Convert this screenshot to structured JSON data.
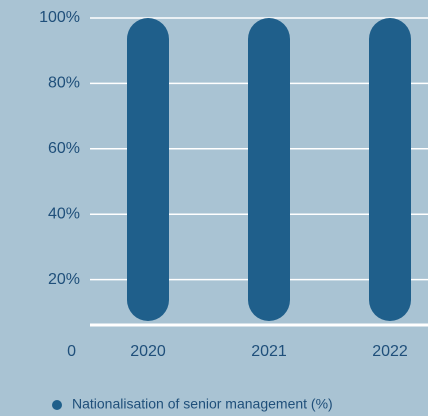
{
  "chart_data": {
    "type": "bar",
    "categories": [
      "2020",
      "2021",
      "2022"
    ],
    "series": [
      {
        "name": "Nationalisation of senior management (%)",
        "color": "#1f5f8b",
        "values": [
          100,
          100,
          100
        ]
      }
    ],
    "ylim": [
      0,
      100
    ],
    "yticks": [
      0,
      {
        "value": 20,
        "label": "20%"
      },
      {
        "value": 40,
        "label": "40%"
      },
      {
        "value": 60,
        "label": "60%"
      },
      {
        "value": 80,
        "label": "80%"
      },
      {
        "value": 100,
        "label": "100%"
      }
    ],
    "grid": true,
    "legend": "bottom"
  }
}
